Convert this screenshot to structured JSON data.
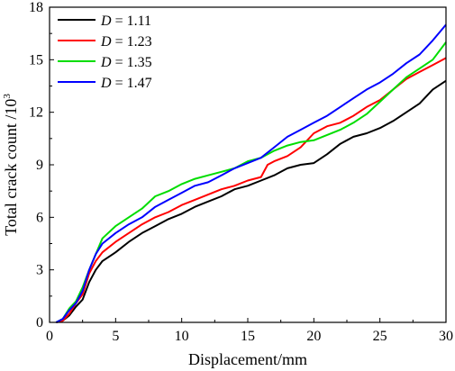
{
  "chart_data": {
    "type": "line",
    "title": "",
    "xlabel": "Displacement/mm",
    "ylabel_main": "Total crack count /10",
    "ylabel_exponent": "3",
    "xlim": [
      0,
      30
    ],
    "ylim": [
      0,
      18
    ],
    "xticks": [
      "0",
      "5",
      "10",
      "15",
      "20",
      "25",
      "30"
    ],
    "yticks": [
      "0",
      "3",
      "6",
      "9",
      "12",
      "15",
      "18"
    ],
    "grid": false,
    "legend_position": "top-left",
    "legend_prefix": "D",
    "series": [
      {
        "name": "= 1.11",
        "color": "#000000",
        "points": [
          [
            0.5,
            0
          ],
          [
            1,
            0.1
          ],
          [
            1.5,
            0.4
          ],
          [
            2,
            0.9
          ],
          [
            2.5,
            1.3
          ],
          [
            3,
            2.3
          ],
          [
            3.5,
            3.0
          ],
          [
            4,
            3.5
          ],
          [
            5,
            4.0
          ],
          [
            6,
            4.6
          ],
          [
            7,
            5.1
          ],
          [
            8,
            5.5
          ],
          [
            9,
            5.9
          ],
          [
            10,
            6.2
          ],
          [
            11,
            6.6
          ],
          [
            12,
            6.9
          ],
          [
            13,
            7.2
          ],
          [
            14,
            7.6
          ],
          [
            15,
            7.8
          ],
          [
            16,
            8.1
          ],
          [
            17,
            8.4
          ],
          [
            18,
            8.8
          ],
          [
            19,
            9.0
          ],
          [
            20,
            9.1
          ],
          [
            21,
            9.6
          ],
          [
            22,
            10.2
          ],
          [
            23,
            10.6
          ],
          [
            24,
            10.8
          ],
          [
            25,
            11.1
          ],
          [
            26,
            11.5
          ],
          [
            27,
            12.0
          ],
          [
            28,
            12.5
          ],
          [
            29,
            13.3
          ],
          [
            30,
            13.8
          ]
        ]
      },
      {
        "name": "= 1.23",
        "color": "#ff0000",
        "points": [
          [
            0.5,
            0
          ],
          [
            1,
            0.1
          ],
          [
            1.5,
            0.5
          ],
          [
            2,
            1.1
          ],
          [
            2.5,
            1.6
          ],
          [
            3,
            2.8
          ],
          [
            3.5,
            3.5
          ],
          [
            4,
            4.0
          ],
          [
            5,
            4.6
          ],
          [
            6,
            5.1
          ],
          [
            7,
            5.6
          ],
          [
            8,
            6.0
          ],
          [
            9,
            6.3
          ],
          [
            10,
            6.7
          ],
          [
            11,
            7.0
          ],
          [
            12,
            7.3
          ],
          [
            13,
            7.6
          ],
          [
            14,
            7.8
          ],
          [
            15,
            8.1
          ],
          [
            16,
            8.3
          ],
          [
            16.5,
            9.0
          ],
          [
            17,
            9.2
          ],
          [
            18,
            9.5
          ],
          [
            19,
            10.0
          ],
          [
            20,
            10.8
          ],
          [
            21,
            11.2
          ],
          [
            22,
            11.4
          ],
          [
            23,
            11.8
          ],
          [
            24,
            12.3
          ],
          [
            25,
            12.7
          ],
          [
            26,
            13.3
          ],
          [
            27,
            13.9
          ],
          [
            28,
            14.3
          ],
          [
            29,
            14.7
          ],
          [
            30,
            15.1
          ]
        ]
      },
      {
        "name": "= 1.35",
        "color": "#00dd00",
        "points": [
          [
            0.5,
            0
          ],
          [
            1,
            0.2
          ],
          [
            1.5,
            0.8
          ],
          [
            2,
            1.2
          ],
          [
            2.5,
            2.0
          ],
          [
            3,
            3.0
          ],
          [
            3.5,
            3.9
          ],
          [
            4,
            4.8
          ],
          [
            5,
            5.5
          ],
          [
            6,
            6.0
          ],
          [
            7,
            6.5
          ],
          [
            8,
            7.2
          ],
          [
            9,
            7.5
          ],
          [
            10,
            7.9
          ],
          [
            11,
            8.2
          ],
          [
            12,
            8.4
          ],
          [
            13,
            8.6
          ],
          [
            14,
            8.8
          ],
          [
            15,
            9.2
          ],
          [
            16,
            9.4
          ],
          [
            17,
            9.8
          ],
          [
            18,
            10.1
          ],
          [
            19,
            10.3
          ],
          [
            20,
            10.4
          ],
          [
            21,
            10.7
          ],
          [
            22,
            11.0
          ],
          [
            23,
            11.4
          ],
          [
            24,
            11.9
          ],
          [
            25,
            12.6
          ],
          [
            26,
            13.3
          ],
          [
            27,
            14.0
          ],
          [
            28,
            14.5
          ],
          [
            29,
            15.0
          ],
          [
            30,
            16.0
          ]
        ]
      },
      {
        "name": "= 1.47",
        "color": "#0000ff",
        "points": [
          [
            0.5,
            0
          ],
          [
            1,
            0.2
          ],
          [
            1.5,
            0.7
          ],
          [
            2,
            1.1
          ],
          [
            2.5,
            1.8
          ],
          [
            3,
            3.0
          ],
          [
            3.5,
            3.9
          ],
          [
            4,
            4.5
          ],
          [
            5,
            5.1
          ],
          [
            6,
            5.6
          ],
          [
            7,
            6.0
          ],
          [
            8,
            6.6
          ],
          [
            9,
            7.0
          ],
          [
            10,
            7.4
          ],
          [
            11,
            7.8
          ],
          [
            12,
            8.0
          ],
          [
            13,
            8.4
          ],
          [
            14,
            8.8
          ],
          [
            15,
            9.1
          ],
          [
            16,
            9.4
          ],
          [
            17,
            10.0
          ],
          [
            18,
            10.6
          ],
          [
            19,
            11.0
          ],
          [
            20,
            11.4
          ],
          [
            21,
            11.8
          ],
          [
            22,
            12.3
          ],
          [
            23,
            12.8
          ],
          [
            24,
            13.3
          ],
          [
            25,
            13.7
          ],
          [
            26,
            14.2
          ],
          [
            27,
            14.8
          ],
          [
            28,
            15.3
          ],
          [
            29,
            16.1
          ],
          [
            30,
            17.0
          ]
        ]
      }
    ]
  }
}
